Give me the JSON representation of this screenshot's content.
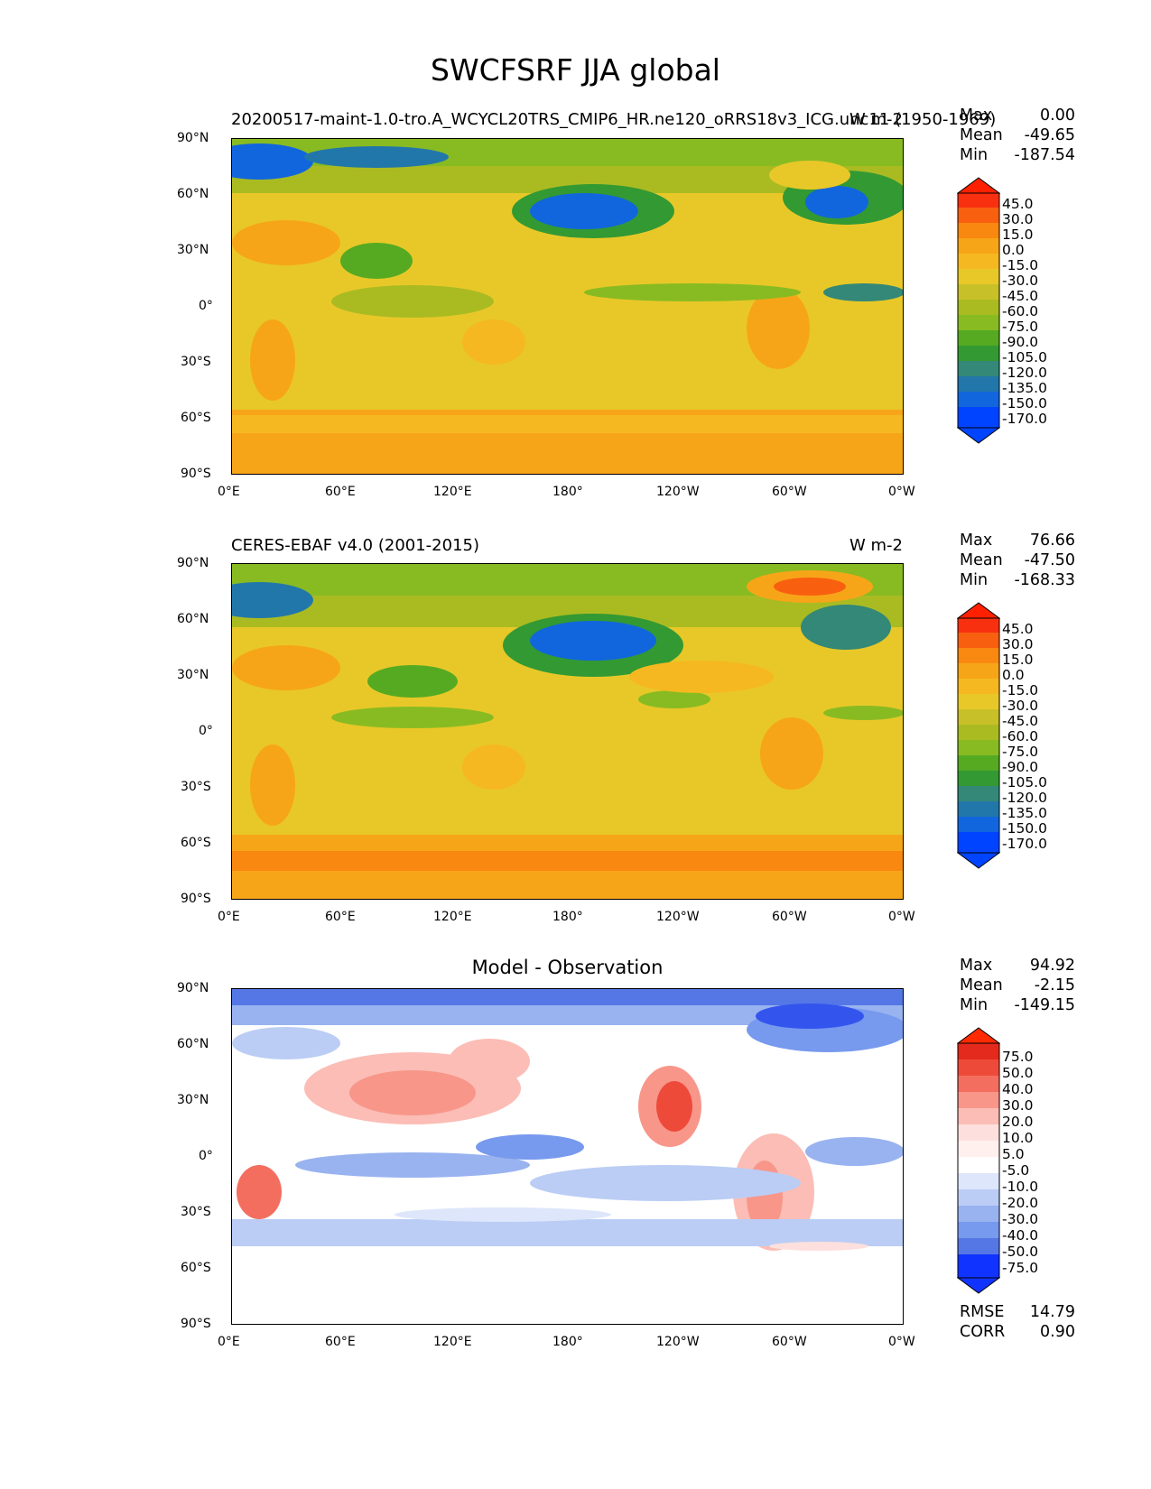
{
  "figure": {
    "title": "SWCFSRF JJA global"
  },
  "axes": {
    "lon_ticks": [
      "0°E",
      "60°E",
      "120°E",
      "180°",
      "120°W",
      "60°W",
      "0°W"
    ],
    "lat_ticks": [
      "90°N",
      "60°N",
      "30°N",
      "0°",
      "30°S",
      "60°S",
      "90°S"
    ]
  },
  "panels": [
    {
      "title_left": "20200517-maint-1.0-tro.A_WCYCL20TRS_CMIP6_HR.ne120_oRRS18v3_ICG.unc11 (1950-1969)",
      "title_right": "W m-2",
      "stats": [
        {
          "label": "Max",
          "value": "0.00"
        },
        {
          "label": "Mean",
          "value": "-49.65"
        },
        {
          "label": "Min",
          "value": "-187.54"
        }
      ],
      "colorbar_levels": [
        "45.0",
        "30.0",
        "15.0",
        "0.0",
        "-15.0",
        "-30.0",
        "-45.0",
        "-60.0",
        "-75.0",
        "-90.0",
        "-105.0",
        "-120.0",
        "-135.0",
        "-150.0",
        "-170.0"
      ]
    },
    {
      "title_left": "CERES-EBAF v4.0 (2001-2015)",
      "title_right": "W m-2",
      "stats": [
        {
          "label": "Max",
          "value": "76.66"
        },
        {
          "label": "Mean",
          "value": "-47.50"
        },
        {
          "label": "Min",
          "value": "-168.33"
        }
      ],
      "colorbar_levels": [
        "45.0",
        "30.0",
        "15.0",
        "0.0",
        "-15.0",
        "-30.0",
        "-45.0",
        "-60.0",
        "-75.0",
        "-90.0",
        "-105.0",
        "-120.0",
        "-135.0",
        "-150.0",
        "-170.0"
      ]
    },
    {
      "title_center": "Model - Observation",
      "stats": [
        {
          "label": "Max",
          "value": "94.92"
        },
        {
          "label": "Mean",
          "value": "-2.15"
        },
        {
          "label": "Min",
          "value": "-149.15"
        }
      ],
      "colorbar_levels": [
        "75.0",
        "50.0",
        "40.0",
        "30.0",
        "20.0",
        "10.0",
        "5.0",
        "-5.0",
        "-10.0",
        "-20.0",
        "-30.0",
        "-40.0",
        "-50.0",
        "-75.0"
      ],
      "metrics": [
        {
          "label": "RMSE",
          "value": "14.79"
        },
        {
          "label": "CORR",
          "value": "0.90"
        }
      ]
    }
  ],
  "colors": {
    "field_scale": [
      "#0044ff",
      "#1166dd",
      "#2277aa",
      "#338877",
      "#339933",
      "#55aa22",
      "#88bb22",
      "#aabb22",
      "#c8c028",
      "#e8c828",
      "#f5b820",
      "#f7a518",
      "#f88810",
      "#f86010",
      "#f83010",
      "#ff2000"
    ],
    "diff_scale": [
      "#1133ff",
      "#3355ee",
      "#5577e6",
      "#7799ee",
      "#99b3f0",
      "#bbcdf5",
      "#dde6fa",
      "#ffffff",
      "#fde0dd",
      "#fbbdb5",
      "#f8968a",
      "#f46e60",
      "#ee4a3a",
      "#e32a1c",
      "#ff2a00"
    ]
  }
}
